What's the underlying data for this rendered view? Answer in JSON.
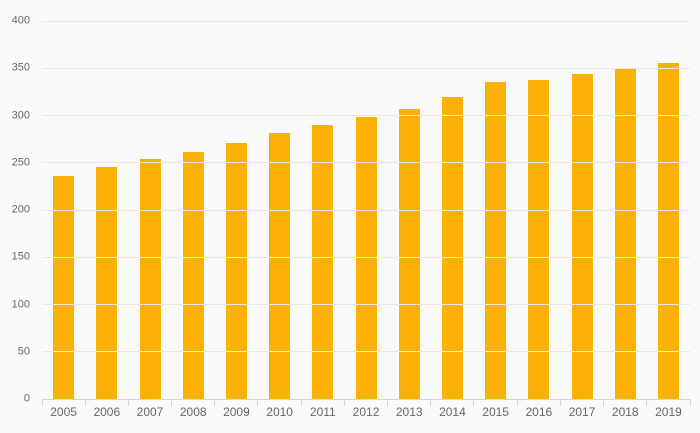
{
  "chart_data": {
    "type": "bar",
    "title": "",
    "xlabel": "",
    "ylabel": "",
    "categories": [
      "2005",
      "2006",
      "2007",
      "2008",
      "2009",
      "2010",
      "2011",
      "2012",
      "2013",
      "2014",
      "2015",
      "2016",
      "2017",
      "2018",
      "2019"
    ],
    "values": [
      236,
      246,
      254,
      261,
      271,
      282,
      290,
      298,
      307,
      320,
      335,
      338,
      344,
      350,
      356
    ],
    "ylim": [
      0,
      400
    ],
    "ytick_interval": 50,
    "yticks": [
      0,
      50,
      100,
      150,
      200,
      250,
      300,
      350,
      400
    ],
    "grid": true,
    "legend": false,
    "colors": {
      "bar": "#FAB005",
      "background": "#FAFAFA",
      "gridline": "#E8E8E8",
      "axis_line": "#CCD6EB",
      "tick_mark": "#CCD6EB",
      "label_text": "#666666"
    }
  }
}
